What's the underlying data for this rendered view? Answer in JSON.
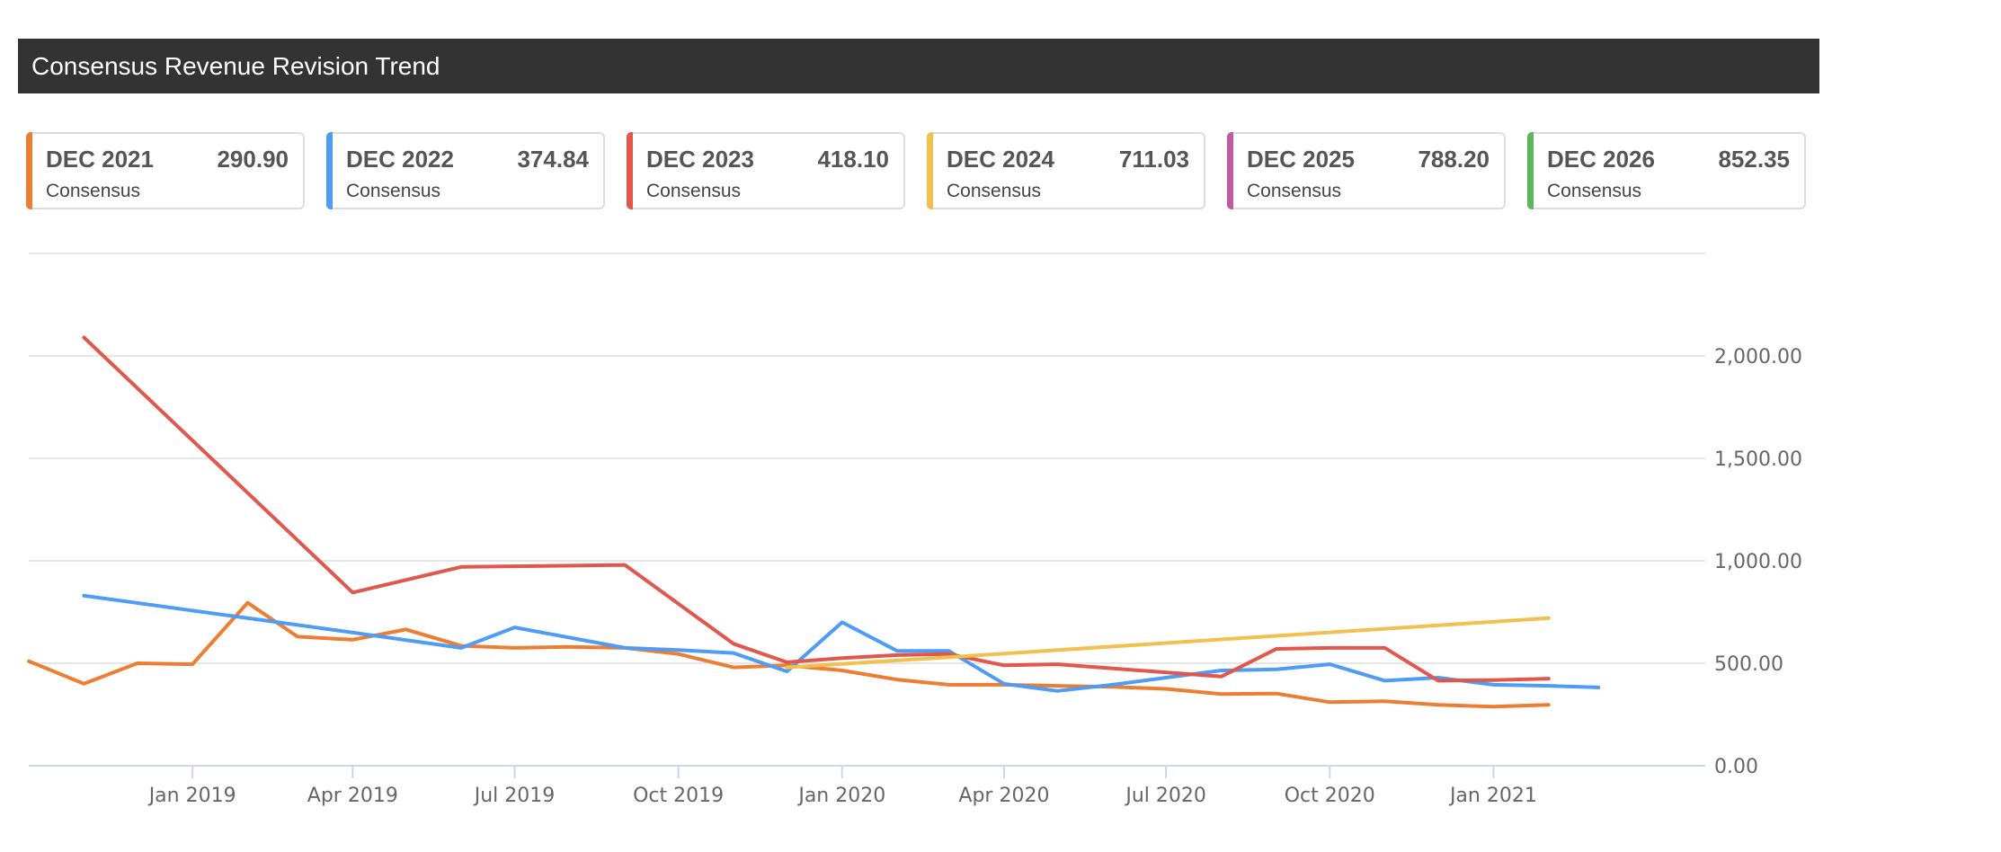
{
  "header": {
    "title": "Consensus Revenue Revision Trend"
  },
  "cards": [
    {
      "period": "DEC 2021",
      "value": "290.90",
      "label": "Consensus",
      "color": "#ed7d31"
    },
    {
      "period": "DEC 2022",
      "value": "374.84",
      "label": "Consensus",
      "color": "#4e9cf5"
    },
    {
      "period": "DEC 2023",
      "value": "418.10",
      "label": "Consensus",
      "color": "#e2574c"
    },
    {
      "period": "DEC 2024",
      "value": "711.03",
      "label": "Consensus",
      "color": "#f2c04e"
    },
    {
      "period": "DEC 2025",
      "value": "788.20",
      "label": "Consensus",
      "color": "#c05aa3"
    },
    {
      "period": "DEC 2026",
      "value": "852.35",
      "label": "Consensus",
      "color": "#5cb85c"
    }
  ],
  "chart_data": {
    "type": "line",
    "title": "",
    "xlabel": "",
    "ylabel": "",
    "xlim": [
      "2018-10-01",
      "2021-04-30"
    ],
    "ylim": [
      0,
      2500
    ],
    "y_ticks": [
      "0.00",
      "500.00",
      "1,000.00",
      "1,500.00",
      "2,000.00"
    ],
    "y_tick_values": [
      0,
      500,
      1000,
      1500,
      2000
    ],
    "x_ticks": [
      "Jan 2019",
      "Apr 2019",
      "Jul 2019",
      "Oct 2019",
      "Jan 2020",
      "Apr 2020",
      "Jul 2020",
      "Oct 2020",
      "Jan 2021"
    ],
    "x_tick_dates": [
      "2019-01-01",
      "2019-04-01",
      "2019-07-01",
      "2019-10-01",
      "2020-01-01",
      "2020-04-01",
      "2020-07-01",
      "2020-10-01",
      "2021-01-01"
    ],
    "grid": true,
    "y_axis_position": "right",
    "series": [
      {
        "name": "DEC 2021",
        "color": "#ed7d31",
        "points": [
          [
            "2018-10-01",
            510
          ],
          [
            "2018-11-01",
            400
          ],
          [
            "2018-12-01",
            500
          ],
          [
            "2019-01-01",
            495
          ],
          [
            "2019-02-01",
            795
          ],
          [
            "2019-03-01",
            630
          ],
          [
            "2019-04-01",
            615
          ],
          [
            "2019-05-01",
            665
          ],
          [
            "2019-06-01",
            585
          ],
          [
            "2019-07-01",
            575
          ],
          [
            "2019-08-01",
            580
          ],
          [
            "2019-09-01",
            575
          ],
          [
            "2019-10-01",
            545
          ],
          [
            "2019-11-01",
            480
          ],
          [
            "2019-12-01",
            490
          ],
          [
            "2020-01-01",
            465
          ],
          [
            "2020-02-01",
            420
          ],
          [
            "2020-03-01",
            395
          ],
          [
            "2020-04-01",
            395
          ],
          [
            "2020-05-01",
            390
          ],
          [
            "2020-06-01",
            385
          ],
          [
            "2020-07-01",
            375
          ],
          [
            "2020-08-01",
            350
          ],
          [
            "2020-09-01",
            352
          ],
          [
            "2020-10-01",
            310
          ],
          [
            "2020-11-01",
            315
          ],
          [
            "2020-12-01",
            297
          ],
          [
            "2021-01-01",
            288
          ],
          [
            "2021-02-01",
            297
          ]
        ]
      },
      {
        "name": "DEC 2022",
        "color": "#4e9cf5",
        "points": [
          [
            "2018-11-01",
            830
          ],
          [
            "2019-04-01",
            650
          ],
          [
            "2019-06-01",
            575
          ],
          [
            "2019-07-01",
            675
          ],
          [
            "2019-09-01",
            575
          ],
          [
            "2019-10-01",
            565
          ],
          [
            "2019-11-01",
            550
          ],
          [
            "2019-12-01",
            460
          ],
          [
            "2020-01-01",
            700
          ],
          [
            "2020-02-01",
            560
          ],
          [
            "2020-03-01",
            560
          ],
          [
            "2020-04-01",
            400
          ],
          [
            "2020-05-01",
            365
          ],
          [
            "2020-06-01",
            395
          ],
          [
            "2020-07-01",
            430
          ],
          [
            "2020-08-01",
            465
          ],
          [
            "2020-09-01",
            470
          ],
          [
            "2020-10-01",
            495
          ],
          [
            "2020-11-01",
            415
          ],
          [
            "2020-12-01",
            430
          ],
          [
            "2021-01-01",
            395
          ],
          [
            "2021-02-01",
            390
          ],
          [
            "2021-03-01",
            382
          ]
        ]
      },
      {
        "name": "DEC 2023",
        "color": "#e2574c",
        "points": [
          [
            "2018-11-01",
            2090
          ],
          [
            "2019-04-01",
            845
          ],
          [
            "2019-06-01",
            970
          ],
          [
            "2019-09-01",
            980
          ],
          [
            "2019-11-01",
            595
          ],
          [
            "2019-12-01",
            505
          ],
          [
            "2020-01-01",
            525
          ],
          [
            "2020-02-01",
            540
          ],
          [
            "2020-03-01",
            545
          ],
          [
            "2020-04-01",
            490
          ],
          [
            "2020-05-01",
            495
          ],
          [
            "2020-08-01",
            435
          ],
          [
            "2020-09-01",
            570
          ],
          [
            "2020-10-01",
            575
          ],
          [
            "2020-11-01",
            575
          ],
          [
            "2020-12-01",
            415
          ],
          [
            "2021-01-01",
            418
          ],
          [
            "2021-02-01",
            425
          ]
        ]
      },
      {
        "name": "DEC 2024",
        "color": "#f2c04e",
        "points": [
          [
            "2019-12-01",
            480
          ],
          [
            "2020-03-01",
            530
          ],
          [
            "2021-02-01",
            720
          ]
        ]
      }
    ]
  }
}
